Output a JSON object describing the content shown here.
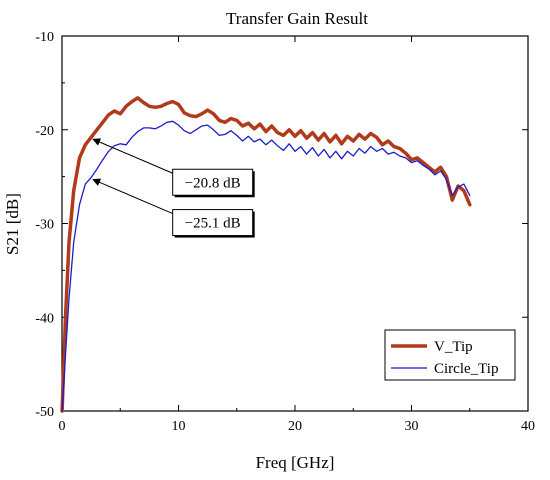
{
  "chart_data": {
    "type": "line",
    "title": "Transfer Gain Result",
    "xlabel": "Freq [GHz]",
    "ylabel": "S21 [dB]",
    "xlim": [
      0,
      40
    ],
    "ylim": [
      -50,
      -10
    ],
    "xticks": [
      0,
      10,
      20,
      30,
      40
    ],
    "yticks": [
      -50,
      -40,
      -30,
      -20,
      -10
    ],
    "grid": false,
    "legend_position": "bottom-right",
    "series": [
      {
        "name": "V_Tip",
        "color": "#b03a1a",
        "line_width": "thick",
        "points": [
          [
            0.01,
            -50
          ],
          [
            0.3,
            -40
          ],
          [
            0.6,
            -32
          ],
          [
            1.0,
            -26.5
          ],
          [
            1.5,
            -23
          ],
          [
            2.0,
            -21.6
          ],
          [
            2.5,
            -20.8
          ],
          [
            3.0,
            -20
          ],
          [
            3.5,
            -19.2
          ],
          [
            4.0,
            -18.4
          ],
          [
            4.5,
            -18.0
          ],
          [
            5.0,
            -18.3
          ],
          [
            5.5,
            -17.5
          ],
          [
            6.0,
            -17.0
          ],
          [
            6.5,
            -16.6
          ],
          [
            7.0,
            -17.1
          ],
          [
            7.5,
            -17.5
          ],
          [
            8.0,
            -17.6
          ],
          [
            8.5,
            -17.5
          ],
          [
            9.0,
            -17.2
          ],
          [
            9.5,
            -17.0
          ],
          [
            10.0,
            -17.3
          ],
          [
            10.5,
            -18.2
          ],
          [
            11.0,
            -18.5
          ],
          [
            11.5,
            -18.6
          ],
          [
            12.0,
            -18.3
          ],
          [
            12.5,
            -17.9
          ],
          [
            13.0,
            -18.3
          ],
          [
            13.5,
            -19.0
          ],
          [
            14.0,
            -19.2
          ],
          [
            14.5,
            -18.8
          ],
          [
            15.0,
            -19.0
          ],
          [
            15.5,
            -19.6
          ],
          [
            16.0,
            -19.3
          ],
          [
            16.5,
            -19.9
          ],
          [
            17.0,
            -19.4
          ],
          [
            17.5,
            -20.2
          ],
          [
            18.0,
            -19.6
          ],
          [
            18.5,
            -20.3
          ],
          [
            19.0,
            -20.6
          ],
          [
            19.5,
            -20.0
          ],
          [
            20.0,
            -20.7
          ],
          [
            20.5,
            -20.1
          ],
          [
            21.0,
            -20.9
          ],
          [
            21.5,
            -20.3
          ],
          [
            22.0,
            -21.1
          ],
          [
            22.5,
            -20.4
          ],
          [
            23.0,
            -21.3
          ],
          [
            23.5,
            -20.6
          ],
          [
            24.0,
            -21.5
          ],
          [
            24.5,
            -20.7
          ],
          [
            25.0,
            -21.2
          ],
          [
            25.5,
            -20.5
          ],
          [
            26.0,
            -21.0
          ],
          [
            26.5,
            -20.4
          ],
          [
            27.0,
            -20.8
          ],
          [
            27.5,
            -21.6
          ],
          [
            28.0,
            -21.2
          ],
          [
            28.5,
            -21.8
          ],
          [
            29.0,
            -22.0
          ],
          [
            29.5,
            -22.5
          ],
          [
            30.0,
            -23.2
          ],
          [
            30.5,
            -23.0
          ],
          [
            31.0,
            -23.5
          ],
          [
            31.5,
            -24.0
          ],
          [
            32.0,
            -24.5
          ],
          [
            32.5,
            -24.0
          ],
          [
            33.0,
            -25.0
          ],
          [
            33.5,
            -27.5
          ],
          [
            34.0,
            -26.0
          ],
          [
            34.5,
            -26.5
          ],
          [
            35.0,
            -28.0
          ]
        ]
      },
      {
        "name": "Circle_Tip",
        "color": "#1c1ccf",
        "line_width": "thin",
        "points": [
          [
            0.01,
            -50
          ],
          [
            0.3,
            -44
          ],
          [
            0.6,
            -38
          ],
          [
            1.0,
            -32
          ],
          [
            1.5,
            -28
          ],
          [
            2.0,
            -25.8
          ],
          [
            2.5,
            -25.1
          ],
          [
            3.0,
            -24.2
          ],
          [
            3.5,
            -23.2
          ],
          [
            4.0,
            -22.3
          ],
          [
            4.5,
            -21.7
          ],
          [
            5.0,
            -21.5
          ],
          [
            5.5,
            -21.6
          ],
          [
            6.0,
            -20.8
          ],
          [
            6.5,
            -20.2
          ],
          [
            7.0,
            -19.8
          ],
          [
            7.5,
            -19.8
          ],
          [
            8.0,
            -19.9
          ],
          [
            8.5,
            -19.6
          ],
          [
            9.0,
            -19.2
          ],
          [
            9.5,
            -19.1
          ],
          [
            10.0,
            -19.5
          ],
          [
            10.5,
            -20.1
          ],
          [
            11.0,
            -20.4
          ],
          [
            11.5,
            -20.0
          ],
          [
            12.0,
            -19.6
          ],
          [
            12.5,
            -19.5
          ],
          [
            13.0,
            -20.0
          ],
          [
            13.5,
            -20.6
          ],
          [
            14.0,
            -20.5
          ],
          [
            14.5,
            -20.1
          ],
          [
            15.0,
            -20.6
          ],
          [
            15.5,
            -21.2
          ],
          [
            16.0,
            -20.7
          ],
          [
            16.5,
            -21.3
          ],
          [
            17.0,
            -21.0
          ],
          [
            17.5,
            -21.6
          ],
          [
            18.0,
            -21.1
          ],
          [
            18.5,
            -21.7
          ],
          [
            19.0,
            -22.2
          ],
          [
            19.5,
            -21.5
          ],
          [
            20.0,
            -22.3
          ],
          [
            20.5,
            -21.8
          ],
          [
            21.0,
            -22.6
          ],
          [
            21.5,
            -21.9
          ],
          [
            22.0,
            -22.8
          ],
          [
            22.5,
            -22.1
          ],
          [
            23.0,
            -23.0
          ],
          [
            23.5,
            -22.3
          ],
          [
            24.0,
            -23.1
          ],
          [
            24.5,
            -22.3
          ],
          [
            25.0,
            -22.8
          ],
          [
            25.5,
            -22.0
          ],
          [
            26.0,
            -22.5
          ],
          [
            26.5,
            -21.8
          ],
          [
            27.0,
            -22.3
          ],
          [
            27.5,
            -22.0
          ],
          [
            28.0,
            -22.6
          ],
          [
            28.5,
            -22.4
          ],
          [
            29.0,
            -22.8
          ],
          [
            29.5,
            -23.0
          ],
          [
            30.0,
            -23.5
          ],
          [
            30.5,
            -23.3
          ],
          [
            31.0,
            -23.8
          ],
          [
            31.5,
            -24.2
          ],
          [
            32.0,
            -24.8
          ],
          [
            32.5,
            -24.4
          ],
          [
            33.0,
            -25.3
          ],
          [
            33.5,
            -27.0
          ],
          [
            34.0,
            -26.1
          ],
          [
            34.5,
            -25.8
          ],
          [
            35.0,
            -27.0
          ]
        ]
      }
    ],
    "annotations": [
      {
        "text": "−20.8 dB",
        "point": [
          2.5,
          -20.8
        ],
        "box_at": [
          9.5,
          -25.6
        ]
      },
      {
        "text": "−25.1 dB",
        "point": [
          2.5,
          -25.1
        ],
        "box_at": [
          9.5,
          -29.9
        ]
      }
    ]
  }
}
